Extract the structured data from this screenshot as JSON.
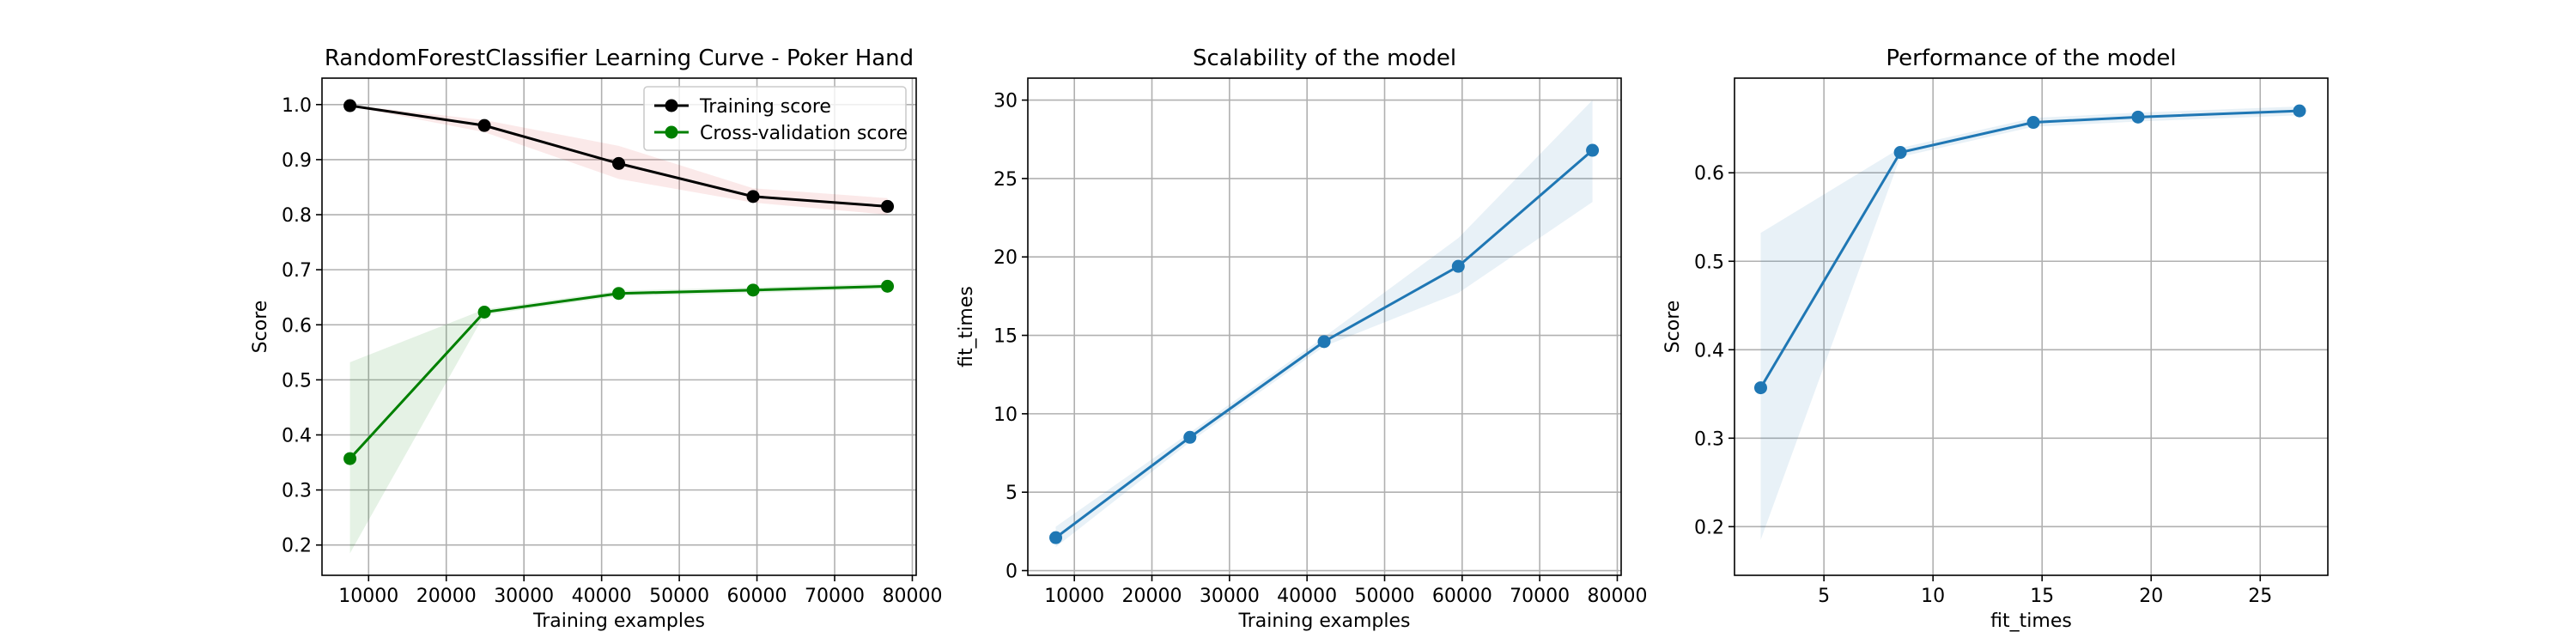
{
  "chart_data": [
    {
      "type": "line",
      "title": "RandomForestClassifier Learning Curve - Poker Hand",
      "xlabel": "Training examples",
      "ylabel": "Score",
      "xlim": [
        4000,
        80500
      ],
      "ylim": [
        0.145,
        1.048
      ],
      "xticks": [
        10000,
        20000,
        30000,
        40000,
        50000,
        60000,
        70000,
        80000
      ],
      "yticks": [
        0.2,
        0.3,
        0.4,
        0.5,
        0.6,
        0.7,
        0.8,
        0.9,
        1.0
      ],
      "ytick_labels": [
        "0.2",
        "0.3",
        "0.4",
        "0.5",
        "0.6",
        "0.7",
        "0.8",
        "0.9",
        "1.0"
      ],
      "grid": true,
      "legend": "upper right",
      "x": [
        7600,
        24900,
        42200,
        59500,
        76800
      ],
      "series": [
        {
          "name": "Training score",
          "color": "#000000",
          "band_color": "#d62728",
          "values": [
            0.998,
            0.962,
            0.893,
            0.833,
            0.815
          ],
          "band_lower": [
            0.997,
            0.95,
            0.865,
            0.822,
            0.8
          ],
          "band_upper": [
            0.999,
            0.972,
            0.925,
            0.848,
            0.83
          ]
        },
        {
          "name": "Cross-validation score",
          "color": "#008000",
          "band_color": "#008000",
          "values": [
            0.357,
            0.623,
            0.657,
            0.663,
            0.67
          ],
          "band_lower": [
            0.185,
            0.618,
            0.652,
            0.658,
            0.665
          ],
          "band_upper": [
            0.532,
            0.628,
            0.662,
            0.668,
            0.675
          ]
        }
      ]
    },
    {
      "type": "line",
      "title": "Scalability of the model",
      "xlabel": "Training examples",
      "ylabel": "fit_times",
      "xlim": [
        4000,
        80500
      ],
      "ylim": [
        -0.3,
        31.4
      ],
      "xticks": [
        10000,
        20000,
        30000,
        40000,
        50000,
        60000,
        70000,
        80000
      ],
      "yticks": [
        0,
        5,
        10,
        15,
        20,
        25,
        30
      ],
      "ytick_labels": [
        "0",
        "5",
        "10",
        "15",
        "20",
        "25",
        "30"
      ],
      "grid": true,
      "x": [
        7600,
        24900,
        42200,
        59500,
        76800
      ],
      "series": [
        {
          "color": "#1f77b4",
          "band_color": "#1f77b4",
          "values": [
            2.1,
            8.5,
            14.6,
            19.4,
            26.8
          ],
          "band_lower": [
            1.5,
            8.2,
            14.3,
            17.7,
            23.5
          ],
          "band_upper": [
            2.8,
            8.8,
            14.9,
            21.2,
            30.0
          ]
        }
      ]
    },
    {
      "type": "line",
      "title": "Performance of the model",
      "xlabel": "fit_times",
      "ylabel": "Score",
      "xlim": [
        0.9,
        28.1
      ],
      "ylim": [
        0.145,
        0.707
      ],
      "xticks": [
        5,
        10,
        15,
        20,
        25
      ],
      "yticks": [
        0.2,
        0.3,
        0.4,
        0.5,
        0.6
      ],
      "ytick_labels": [
        "0.2",
        "0.3",
        "0.4",
        "0.5",
        "0.6"
      ],
      "grid": true,
      "x": [
        2.1,
        8.5,
        14.6,
        19.4,
        26.8
      ],
      "series": [
        {
          "color": "#1f77b4",
          "band_color": "#1f77b4",
          "values": [
            0.357,
            0.623,
            0.657,
            0.663,
            0.67
          ],
          "band_lower": [
            0.185,
            0.618,
            0.652,
            0.658,
            0.665
          ],
          "band_upper": [
            0.532,
            0.628,
            0.662,
            0.668,
            0.675
          ]
        }
      ]
    }
  ]
}
